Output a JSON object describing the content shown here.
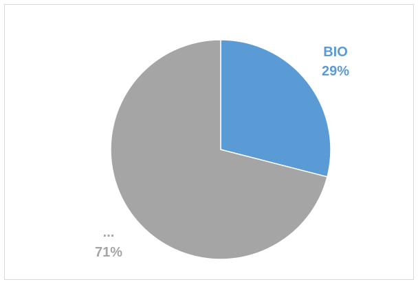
{
  "chart_data": {
    "type": "pie",
    "title": "",
    "slices": [
      {
        "label": "BIO",
        "value": 29,
        "percent_label": "29%",
        "color": "#5b9bd5",
        "label_color": "#5b9bd5"
      },
      {
        "label": "...",
        "value": 71,
        "percent_label": "71%",
        "color": "#a5a5a5",
        "label_color": "#a5a5a5"
      }
    ],
    "start_angle_deg": 0,
    "direction": "clockwise",
    "legend": "none",
    "border_color": "#d9d9d9"
  }
}
